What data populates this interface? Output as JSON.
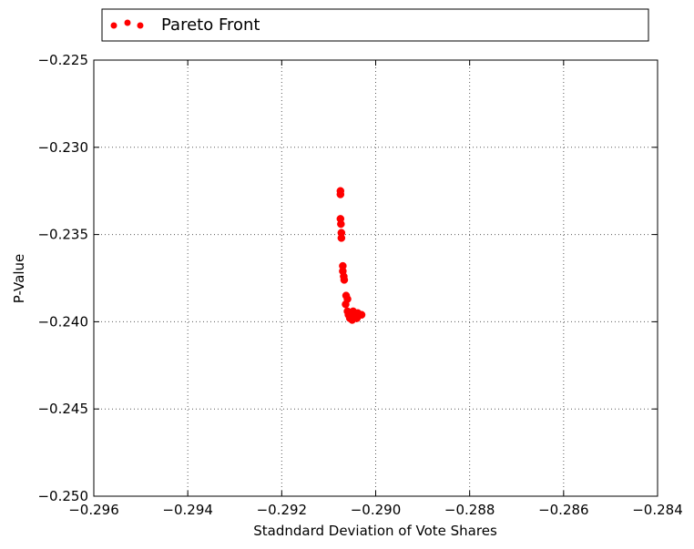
{
  "chart_data": {
    "type": "scatter",
    "title": "",
    "xlabel": "Stadndard Deviation of Vote Shares",
    "ylabel": "P-Value",
    "xlim": [
      -0.296,
      -0.284
    ],
    "ylim": [
      -0.25,
      -0.225
    ],
    "x_ticks": [
      -0.296,
      -0.294,
      -0.292,
      -0.29,
      -0.288,
      -0.286,
      -0.284
    ],
    "x_tick_labels": [
      "−0.296",
      "−0.294",
      "−0.292",
      "−0.290",
      "−0.288",
      "−0.286",
      "−0.284"
    ],
    "y_ticks": [
      -0.25,
      -0.245,
      -0.24,
      -0.235,
      -0.23,
      -0.225
    ],
    "y_tick_labels": [
      "−0.250",
      "−0.245",
      "−0.240",
      "−0.235",
      "−0.230",
      "−0.225"
    ],
    "grid": true,
    "legend": {
      "placement": "top",
      "entries": [
        {
          "label": "Pareto Front",
          "color": "#ff0000"
        }
      ]
    },
    "series": [
      {
        "name": "Pareto Front",
        "color": "#ff0000",
        "points": [
          {
            "x": -0.29075,
            "y": -0.2325
          },
          {
            "x": -0.29075,
            "y": -0.2327
          },
          {
            "x": -0.29075,
            "y": -0.2341
          },
          {
            "x": -0.29074,
            "y": -0.2344
          },
          {
            "x": -0.29073,
            "y": -0.2349
          },
          {
            "x": -0.29073,
            "y": -0.2352
          },
          {
            "x": -0.2907,
            "y": -0.2368
          },
          {
            "x": -0.2907,
            "y": -0.2371
          },
          {
            "x": -0.29068,
            "y": -0.2374
          },
          {
            "x": -0.29067,
            "y": -0.2376
          },
          {
            "x": -0.29063,
            "y": -0.2385
          },
          {
            "x": -0.2906,
            "y": -0.2387
          },
          {
            "x": -0.29064,
            "y": -0.239
          },
          {
            "x": -0.2906,
            "y": -0.2394
          },
          {
            "x": -0.29058,
            "y": -0.2396
          },
          {
            "x": -0.29055,
            "y": -0.2398
          },
          {
            "x": -0.2905,
            "y": -0.2399
          },
          {
            "x": -0.29045,
            "y": -0.2396
          },
          {
            "x": -0.29038,
            "y": -0.2395
          },
          {
            "x": -0.2904,
            "y": -0.2398
          },
          {
            "x": -0.29048,
            "y": -0.2394
          },
          {
            "x": -0.2903,
            "y": -0.2396
          }
        ]
      }
    ]
  }
}
